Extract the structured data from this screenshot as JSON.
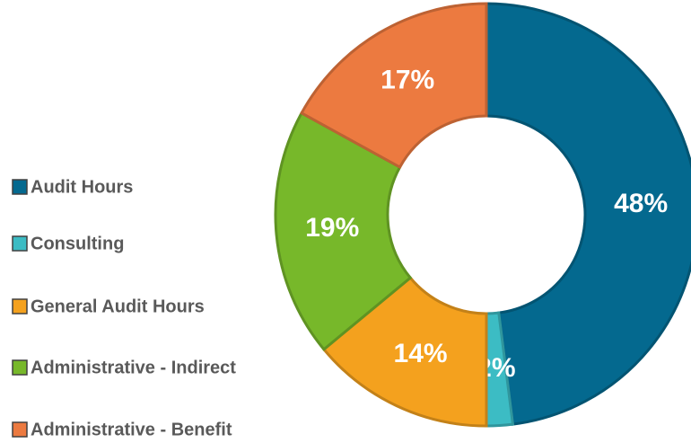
{
  "chart_data": {
    "type": "donut",
    "categories": [
      "Audit Hours",
      "Consulting",
      "General Audit Hours",
      "Administrative - Indirect",
      "Administrative - Benefit"
    ],
    "values": [
      48,
      2,
      14,
      19,
      17
    ],
    "value_labels": [
      "48%",
      "2%",
      "14%",
      "19%",
      "17%"
    ],
    "colors": [
      "#04698f",
      "#3cbcc4",
      "#f4a11e",
      "#77b82a",
      "#ec7a40"
    ],
    "legend": "left"
  }
}
